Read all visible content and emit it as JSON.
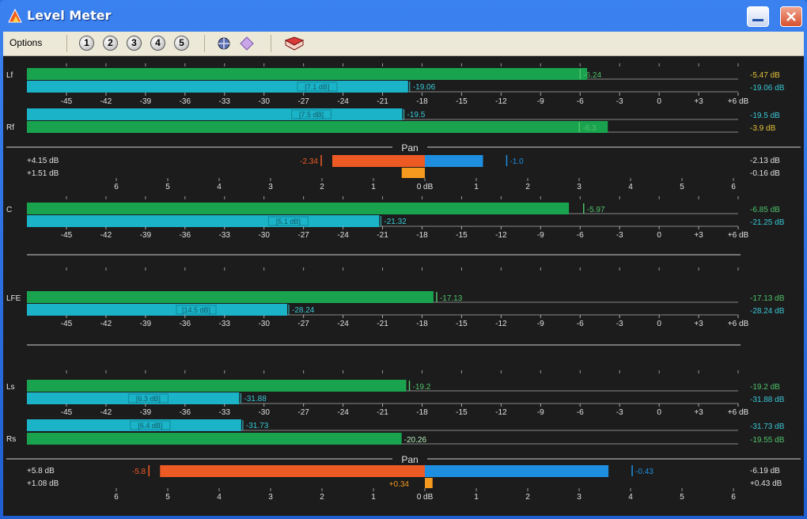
{
  "window": {
    "title": "Level Meter"
  },
  "toolbar": {
    "options_label": "Options",
    "channel_buttons": [
      "1",
      "2",
      "3",
      "4",
      "5"
    ]
  },
  "db_scale": [
    "-45",
    "-42",
    "-39",
    "-36",
    "-33",
    "-30",
    "-27",
    "-24",
    "-21",
    "-18",
    "-15",
    "-12",
    "-9",
    "-6",
    "-3",
    "0",
    "+3",
    "+6 dB"
  ],
  "pan_scale": [
    "6",
    "5",
    "4",
    "3",
    "2",
    "1",
    "0 dB",
    "1",
    "2",
    "3",
    "4",
    "5",
    "6"
  ],
  "groups": [
    {
      "type": "stereo",
      "top": {
        "label": "Lf",
        "peak_db": -5.47,
        "rms_db": -19.06,
        "peak_text": "-5.47 dB",
        "rms_text": "-19.06 dB",
        "peak_hold": "-6.24",
        "rms_value": "-19.06",
        "crest": "[7.1 dB]"
      },
      "bottom": {
        "label": "Rf",
        "peak_db": -3.9,
        "rms_db": -19.5,
        "peak_text": "-3.9 dB",
        "rms_text": "-19.5 dB",
        "peak_hold": "-6.3",
        "rms_value": "-19.5",
        "crest": "[7.5 dB]"
      },
      "pan": {
        "title": "Pan",
        "left_peak": "+4.15 dB",
        "left_rms": "+1.51 dB",
        "right_peak": "-2.13 dB",
        "right_rms": "-0.16 dB",
        "peak_marker": "-2.34",
        "rms_marker": "-1.0",
        "peak_bar": -1.8,
        "rms_bar": 1.13,
        "small_bar": -0.45
      }
    },
    {
      "type": "mono",
      "ch": {
        "label": "C",
        "peak_db": -6.85,
        "rms_db": -21.25,
        "peak_text": "-6.85 dB",
        "rms_text": "-21.25 dB",
        "peak_hold": "-5.97",
        "rms_value": "-21.32",
        "crest": "[5.1 dB]"
      }
    },
    {
      "type": "mono",
      "ch": {
        "label": "LFE",
        "peak_db": -17.13,
        "rms_db": -28.24,
        "peak_text": "-17.13 dB",
        "rms_text": "-28.24 dB",
        "peak_hold": "-17.13",
        "rms_value": "-28.24",
        "crest": "[14.5 dB]"
      }
    },
    {
      "type": "stereo",
      "top": {
        "label": "Ls",
        "peak_db": -19.2,
        "rms_db": -31.88,
        "peak_text": "-19.2 dB",
        "rms_text": "-31.88 dB",
        "peak_hold": "-19.2",
        "rms_value": "-31.88",
        "crest": "[6.3 dB]"
      },
      "bottom": {
        "label": "Rs",
        "peak_db": -19.55,
        "rms_db": -31.73,
        "peak_text": "-19.55 dB",
        "rms_text": "-31.73 dB",
        "peak_hold": "",
        "rms_value": "-31.73",
        "peak_value": "-20.26",
        "crest": "[6.4 dB]"
      },
      "pan": {
        "title": "Pan",
        "left_peak": "+5.8 dB",
        "left_rms": "+1.08 dB",
        "right_peak": "-6.19 dB",
        "right_rms": "+0.43 dB",
        "peak_marker": "-5.8",
        "rms_marker": "-0.43",
        "rms_left_marker": "+0.34",
        "peak_bar": -5.15,
        "rms_bar": 3.57,
        "small_bar": 0.15
      }
    }
  ],
  "colors": {
    "peak": "#1aa34f",
    "rms": "#1ab3c8",
    "pan_left": "#ee5a24",
    "pan_right": "#1e8fe0",
    "pan_small": "#f59a1e",
    "hold_peak": "#4fc36a",
    "hold_rms": "#39c8d6",
    "text": "#e0e0e0",
    "peak_label": "#e2c23a",
    "rms_label": "#39c8d6"
  }
}
